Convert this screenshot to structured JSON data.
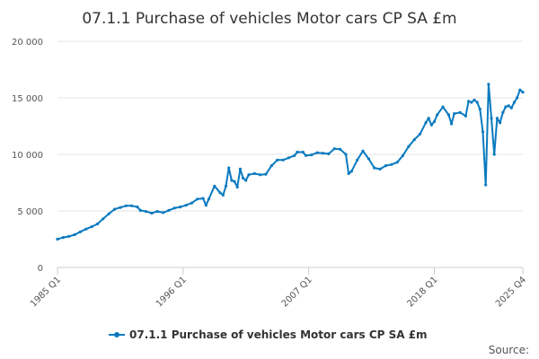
{
  "chart_data": {
    "type": "line",
    "title": "07.1.1 Purchase of vehicles Motor cars CP SA £m",
    "xlabel": "",
    "ylabel": "",
    "ylim": [
      0,
      20000
    ],
    "y_ticks": [
      {
        "value": 0,
        "label": "0"
      },
      {
        "value": 5000,
        "label": "5 000"
      },
      {
        "value": 10000,
        "label": "10 000"
      },
      {
        "value": 15000,
        "label": "15 000"
      },
      {
        "value": 20000,
        "label": "20 000"
      }
    ],
    "x_range": [
      1985.0,
      2025.75
    ],
    "x_ticks": [
      {
        "value": 1985.0,
        "label": "1985 Q1"
      },
      {
        "value": 1996.0,
        "label": "1996 Q1"
      },
      {
        "value": 2007.0,
        "label": "2007 Q1"
      },
      {
        "value": 2018.0,
        "label": "2018 Q1"
      },
      {
        "value": 2025.75,
        "label": "2025 Q4"
      }
    ],
    "grid": "horizontal",
    "legend_position": "bottom",
    "series": [
      {
        "name": "07.1.1 Purchase of vehicles Motor cars CP SA £m",
        "color": "#0a7abf",
        "points": [
          [
            "1985 Q1",
            2500
          ],
          [
            "1985 Q3",
            2650
          ],
          [
            "1986 Q1",
            2750
          ],
          [
            "1986 Q3",
            2900
          ],
          [
            "1987 Q1",
            3150
          ],
          [
            "1987 Q3",
            3400
          ],
          [
            "1988 Q1",
            3600
          ],
          [
            "1988 Q3",
            3850
          ],
          [
            "1989 Q1",
            4300
          ],
          [
            "1989 Q3",
            4750
          ],
          [
            "1990 Q1",
            5150
          ],
          [
            "1990 Q3",
            5300
          ],
          [
            "1991 Q1",
            5450
          ],
          [
            "1991 Q3",
            5450
          ],
          [
            "1992 Q1",
            5350
          ],
          [
            "1992 Q2",
            5050
          ],
          [
            "1992 Q4",
            4950
          ],
          [
            "1993 Q2",
            4800
          ],
          [
            "1993 Q4",
            4950
          ],
          [
            "1994 Q2",
            4850
          ],
          [
            "1994 Q4",
            5050
          ],
          [
            "1995 Q2",
            5250
          ],
          [
            "1995 Q4",
            5350
          ],
          [
            "1996 Q2",
            5500
          ],
          [
            "1996 Q4",
            5700
          ],
          [
            "1997 Q2",
            6050
          ],
          [
            "1997 Q4",
            6100
          ],
          [
            "1998 Q1",
            5500
          ],
          [
            "1998 Q2",
            6050
          ],
          [
            "1998 Q4",
            7200
          ],
          [
            "1999 Q2",
            6600
          ],
          [
            "1999 Q3",
            6400
          ],
          [
            "1999 Q4",
            7200
          ],
          [
            "2000 Q1",
            8800
          ],
          [
            "2000 Q2",
            7700
          ],
          [
            "2000 Q3",
            7600
          ],
          [
            "2000 Q4",
            7100
          ],
          [
            "2001 Q1",
            8700
          ],
          [
            "2001 Q2",
            7900
          ],
          [
            "2001 Q3",
            7700
          ],
          [
            "2001 Q4",
            8200
          ],
          [
            "2002 Q2",
            8300
          ],
          [
            "2002 Q4",
            8200
          ],
          [
            "2003 Q2",
            8250
          ],
          [
            "2003 Q4",
            9000
          ],
          [
            "2004 Q2",
            9500
          ],
          [
            "2004 Q4",
            9500
          ],
          [
            "2005 Q2",
            9700
          ],
          [
            "2005 Q4",
            9900
          ],
          [
            "2006 Q1",
            10200
          ],
          [
            "2006 Q3",
            10200
          ],
          [
            "2006 Q4",
            9900
          ],
          [
            "2007 Q2",
            9950
          ],
          [
            "2007 Q4",
            10150
          ],
          [
            "2008 Q2",
            10100
          ],
          [
            "2008 Q4",
            10050
          ],
          [
            "2009 Q2",
            10500
          ],
          [
            "2009 Q4",
            10450
          ],
          [
            "2010 Q2",
            10000
          ],
          [
            "2010 Q3",
            8300
          ],
          [
            "2010 Q4",
            8500
          ],
          [
            "2011 Q2",
            9500
          ],
          [
            "2011 Q4",
            10300
          ],
          [
            "2012 Q2",
            9600
          ],
          [
            "2012 Q4",
            8800
          ],
          [
            "2013 Q2",
            8700
          ],
          [
            "2013 Q4",
            9000
          ],
          [
            "2014 Q2",
            9100
          ],
          [
            "2014 Q4",
            9300
          ],
          [
            "2015 Q2",
            9900
          ],
          [
            "2015 Q4",
            10700
          ],
          [
            "2016 Q2",
            11300
          ],
          [
            "2016 Q4",
            11800
          ],
          [
            "2017 Q2",
            12800
          ],
          [
            "2017 Q3",
            13200
          ],
          [
            "2017 Q4",
            12600
          ],
          [
            "2018 Q1",
            12900
          ],
          [
            "2018 Q2",
            13500
          ],
          [
            "2018 Q4",
            14200
          ],
          [
            "2019 Q2",
            13500
          ],
          [
            "2019 Q3",
            12700
          ],
          [
            "2019 Q4",
            13600
          ],
          [
            "2020 Q2",
            13700
          ],
          [
            "2020 Q4",
            13400
          ],
          [
            "2021 Q1",
            14700
          ],
          [
            "2021 Q2",
            14600
          ],
          [
            "2021 Q3",
            14800
          ],
          [
            "2021 Q4",
            14600
          ],
          [
            "2022 Q1",
            14000
          ],
          [
            "2022 Q2",
            12000
          ],
          [
            "2022 Q3",
            7300
          ],
          [
            "2022 Q4",
            16200
          ],
          [
            "2023 Q1",
            13200
          ],
          [
            "2023 Q2",
            10000
          ],
          [
            "2023 Q3",
            13200
          ],
          [
            "2023 Q4",
            12800
          ],
          [
            "2024 Q1",
            13700
          ],
          [
            "2024 Q2",
            14200
          ],
          [
            "2024 Q3",
            14300
          ],
          [
            "2024 Q4",
            14100
          ],
          [
            "2025 Q1",
            14600
          ],
          [
            "2025 Q2",
            15000
          ],
          [
            "2025 Q3",
            15700
          ],
          [
            "2025 Q4",
            15500
          ]
        ]
      }
    ],
    "credit": "Source:"
  }
}
